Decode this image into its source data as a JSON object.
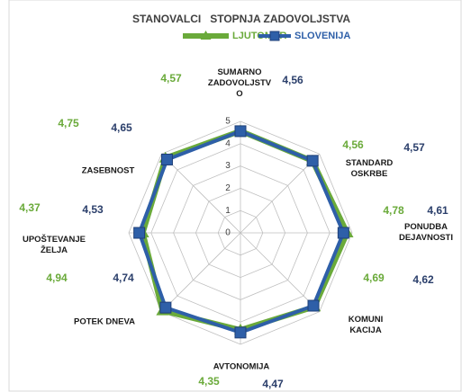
{
  "chart_data": {
    "type": "radar",
    "title": "STANOVALCI   STOPNJA ZADOVOLJSTVA",
    "categories": [
      "SUMARNO\nZADOVOLJSTV\nO",
      "STANDARD\nOSKRBE",
      "PONUDBA\nDEJAVNOSTI",
      "KOMUNI\nKACIJA",
      "AVTONOMIJA",
      "POTEK DNEVA",
      "UPOŠTEVANJE\nŽELJA",
      "ZASEBNOST"
    ],
    "series": [
      {
        "name": "LJUTOMER",
        "color": "#6aaa3a",
        "values": [
          4.57,
          4.56,
          4.78,
          4.69,
          4.35,
          4.94,
          4.37,
          4.75
        ],
        "value_labels": [
          "4,57",
          "4,56",
          "4,78",
          "4,69",
          "4,35",
          "4,94",
          "4,37",
          "4,75"
        ]
      },
      {
        "name": "SLOVENIJA",
        "color": "#2e5fa8",
        "values": [
          4.56,
          4.57,
          4.61,
          4.62,
          4.47,
          4.74,
          4.53,
          4.65
        ],
        "value_labels": [
          "4,56",
          "4,57",
          "4,61",
          "4,62",
          "4,47",
          "4,74",
          "4,53",
          "4,65"
        ]
      }
    ],
    "rlim": [
      0,
      5
    ],
    "rticks": [
      0,
      1,
      2,
      3,
      4,
      5
    ],
    "grid": true,
    "legend": "top"
  }
}
